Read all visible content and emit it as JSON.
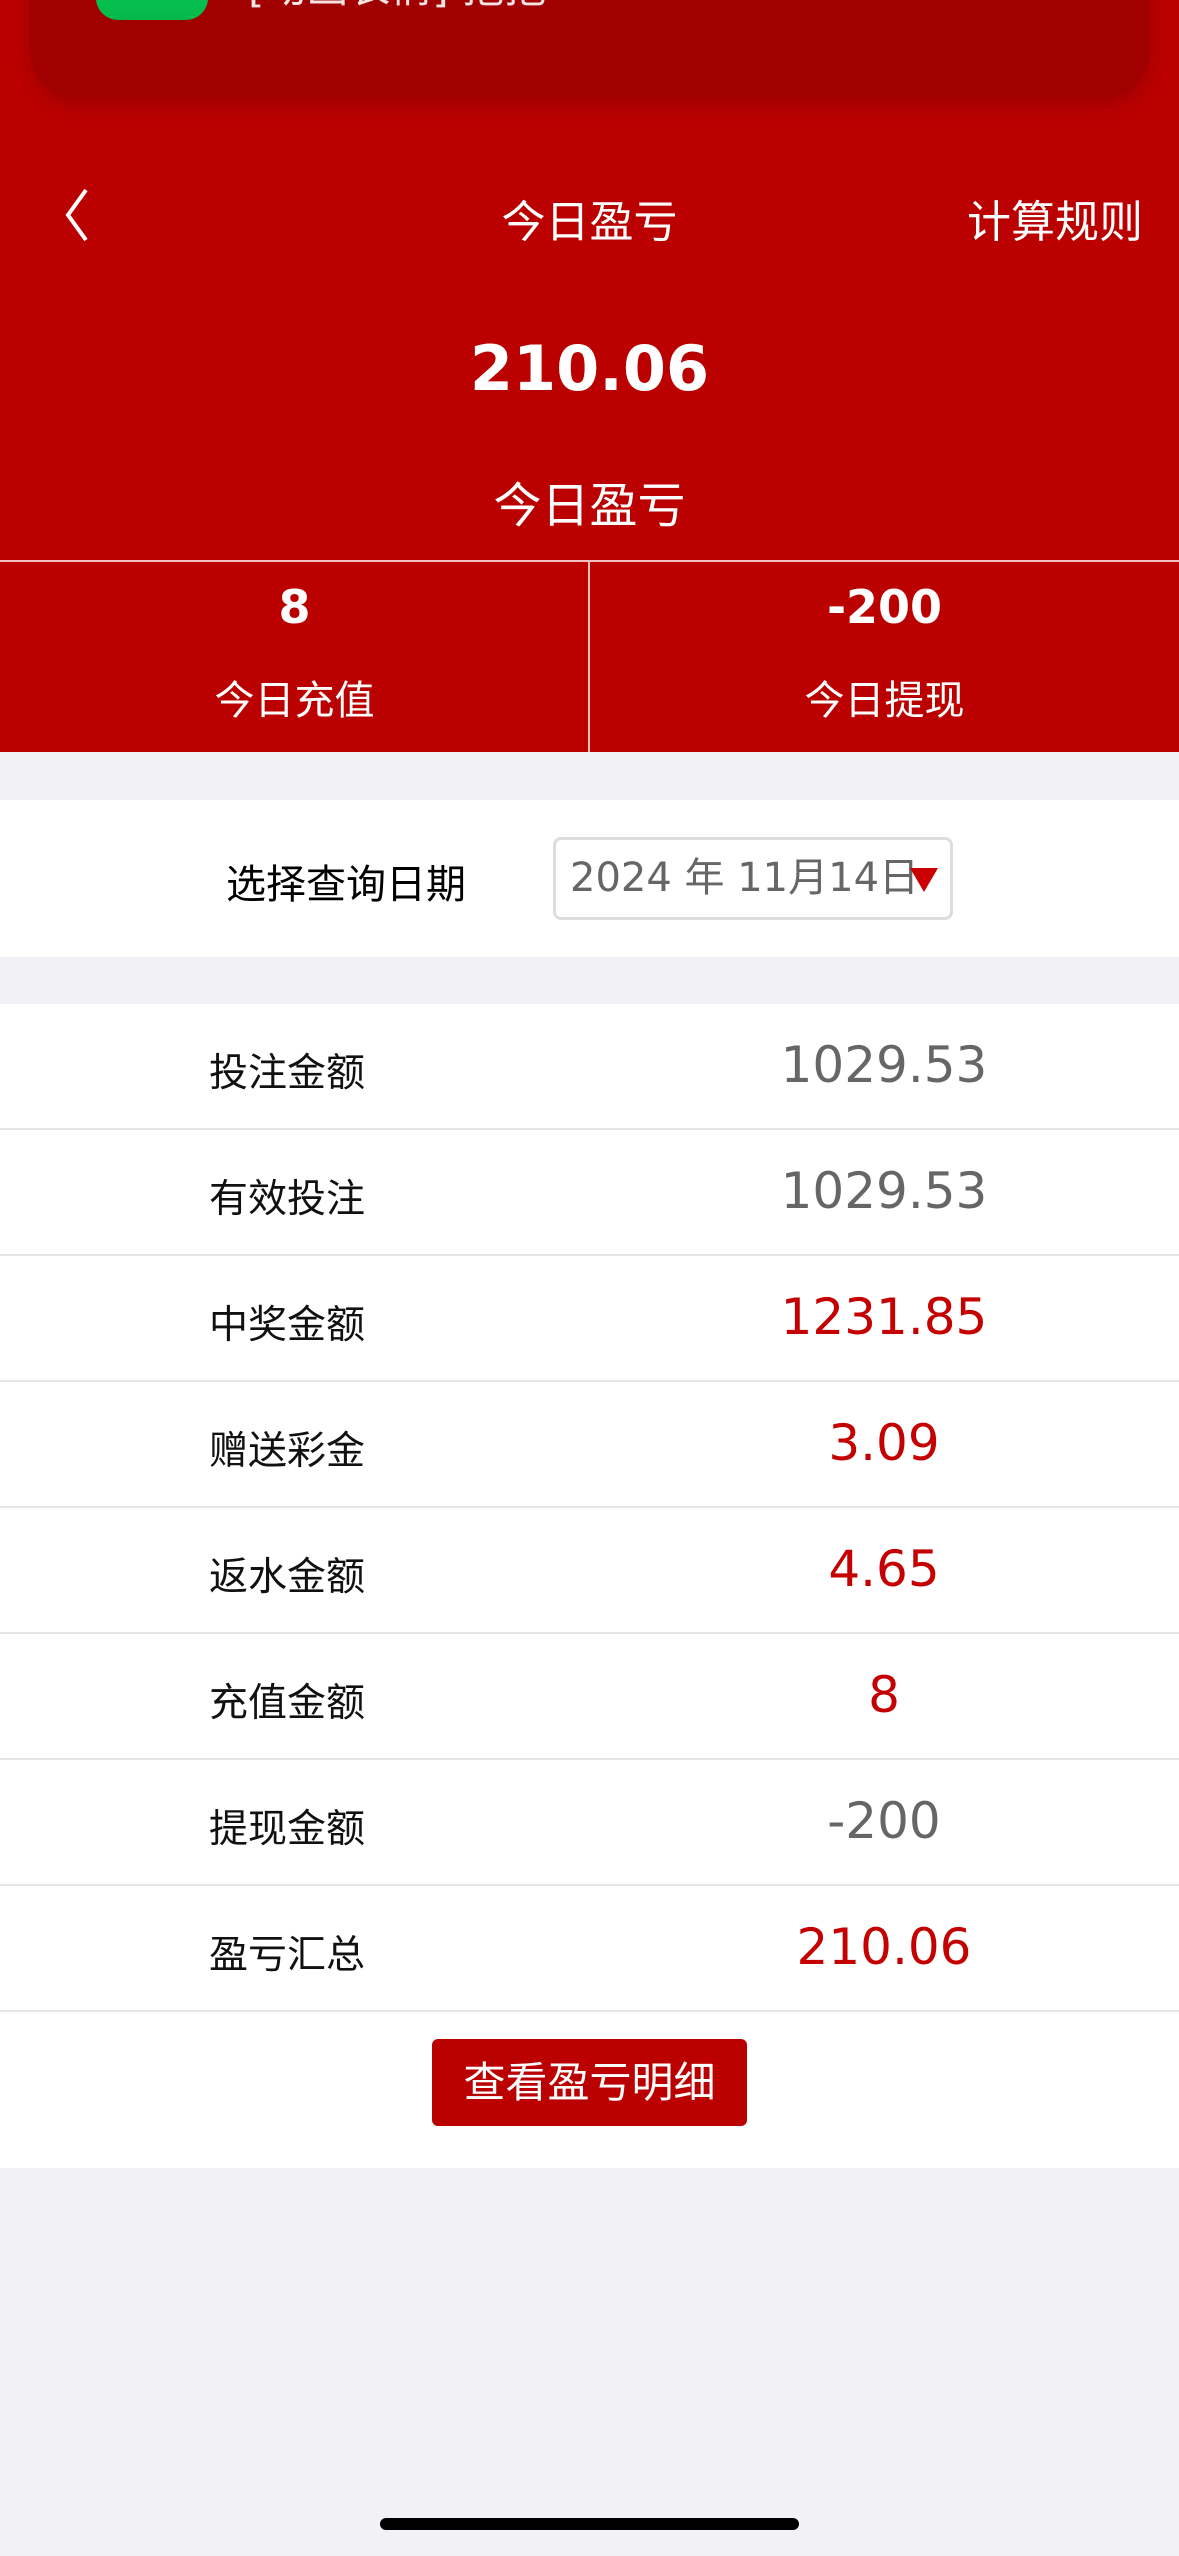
{
  "notification": {
    "app_icon": "wechat-icon",
    "text": "[动画表情] 抱抱"
  },
  "nav": {
    "back_icon": "chevron-left-icon",
    "title": "今日盈亏",
    "rule_label": "计算规则"
  },
  "summary": {
    "value": "210.06",
    "label": "今日盈亏"
  },
  "stats": [
    {
      "value": "8",
      "label": "今日充值"
    },
    {
      "value": "-200",
      "label": "今日提现"
    }
  ],
  "date_filter": {
    "label": "选择查询日期",
    "value": "2024 年 11月14日"
  },
  "rows": [
    {
      "label": "投注金额",
      "value": "1029.53",
      "color": "#666666"
    },
    {
      "label": "有效投注",
      "value": "1029.53",
      "color": "#666666"
    },
    {
      "label": "中奖金额",
      "value": "1231.85",
      "color": "#c40000"
    },
    {
      "label": "赠送彩金",
      "value": "3.09",
      "color": "#c40000"
    },
    {
      "label": "返水金额",
      "value": "4.65",
      "color": "#c40000"
    },
    {
      "label": "充值金额",
      "value": "8",
      "color": "#c40000"
    },
    {
      "label": "提现金额",
      "value": "-200",
      "color": "#666666"
    },
    {
      "label": "盈亏汇总",
      "value": "210.06",
      "color": "#c40000"
    }
  ],
  "detail_button": "查看盈亏明细",
  "colors": {
    "brand": "#bb0000"
  }
}
